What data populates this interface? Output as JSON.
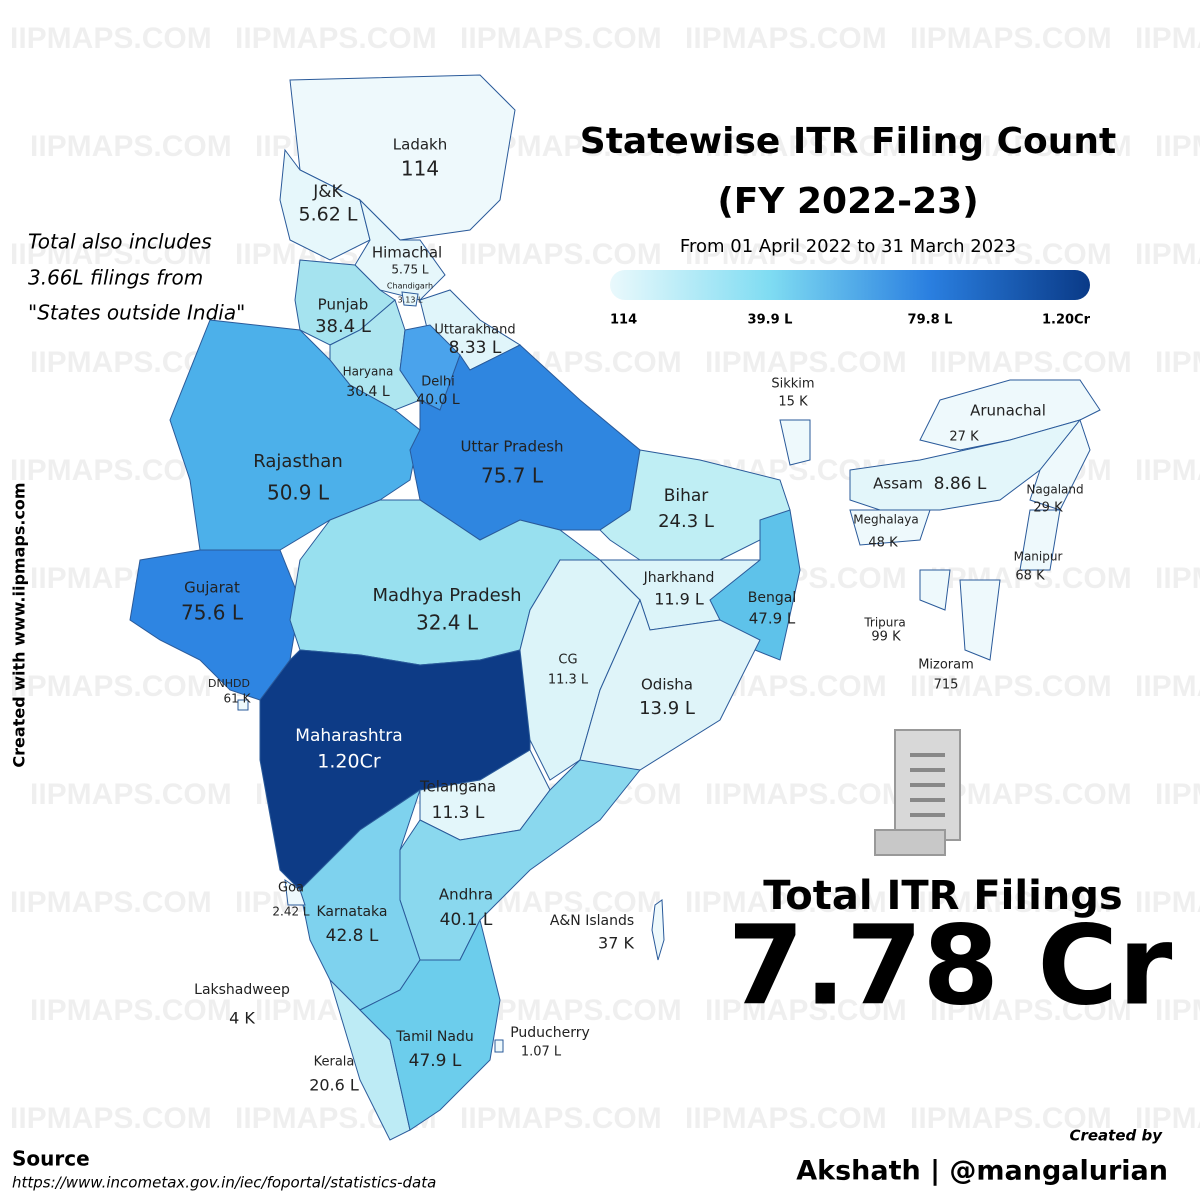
{
  "header": {
    "title": "Statewise ITR Filing Count",
    "title_line2": "(FY 2022-23)",
    "subtitle": "From 01 April 2022 to 31 March 2023"
  },
  "legend": {
    "colors": [
      "#eaf9fc",
      "#7fdcf2",
      "#2a7fe0",
      "#0a3a87"
    ],
    "ticks": [
      "114",
      "39.9 L",
      "79.8 L",
      "1.20Cr"
    ]
  },
  "note": {
    "lines": [
      "Total also includes",
      "3.66L filings from",
      "\"States outside India\""
    ]
  },
  "watermark": "IIPMAPS.COM",
  "side_text": "Created with www.iipmaps.com",
  "total": {
    "label": "Total ITR Filings",
    "value": "7.78 Cr"
  },
  "source": {
    "label": "Source",
    "url": "https://www.incometax.gov.in/iec/foportal/statistics-data"
  },
  "credit": {
    "label": "Created by",
    "author": "Akshath | @mangalurian"
  },
  "states": [
    {
      "name": "Ladakh",
      "value": "114",
      "color": "#eef9fc"
    },
    {
      "name": "J&K",
      "value": "5.62 L",
      "color": "#e6f7fb"
    },
    {
      "name": "Himachal",
      "value": "5.75 L",
      "color": "#e6f7fb"
    },
    {
      "name": "Chandigarh",
      "value": "3.13 L",
      "color": "#e6f7fb"
    },
    {
      "name": "Punjab",
      "value": "38.4 L",
      "color": "#a5e3ef"
    },
    {
      "name": "Uttarakhand",
      "value": "8.33 L",
      "color": "#e0f5fa"
    },
    {
      "name": "Haryana",
      "value": "30.4 L",
      "color": "#aee6f0"
    },
    {
      "name": "Delhi",
      "value": "40.0 L",
      "color": "#4aa3ec"
    },
    {
      "name": "Rajasthan",
      "value": "50.9 L",
      "color": "#4cb0ea"
    },
    {
      "name": "Uttar Pradesh",
      "value": "75.7 L",
      "color": "#2f86e0"
    },
    {
      "name": "Gujarat",
      "value": "75.6 L",
      "color": "#2e85e2"
    },
    {
      "name": "Madhya Pradesh",
      "value": "32.4 L",
      "color": "#98e0ef"
    },
    {
      "name": "Maharashtra",
      "value": "1.20Cr",
      "color": "#0d3b86"
    },
    {
      "name": "Bihar",
      "value": "24.3 L",
      "color": "#bfeef4"
    },
    {
      "name": "Jharkhand",
      "value": "11.9 L",
      "color": "#dcf4f9"
    },
    {
      "name": "Bengal",
      "value": "47.9 L",
      "color": "#5ec2ea"
    },
    {
      "name": "CG",
      "value": "11.3 L",
      "color": "#dcf4f9"
    },
    {
      "name": "Odisha",
      "value": "13.9 L",
      "color": "#dff4f9"
    },
    {
      "name": "Telangana",
      "value": "11.3 L",
      "color": "#e3f6fa"
    },
    {
      "name": "Andhra",
      "value": "40.1 L",
      "color": "#8ad8ee"
    },
    {
      "name": "Karnataka",
      "value": "42.8 L",
      "color": "#7ed2ee"
    },
    {
      "name": "Goa",
      "value": "2.42 L",
      "color": "#eef9fc"
    },
    {
      "name": "Kerala",
      "value": "20.6 L",
      "color": "#bdebf5"
    },
    {
      "name": "Tamil Nadu",
      "value": "47.9 L",
      "color": "#6ccdec"
    },
    {
      "name": "Puducherry",
      "value": "1.07 L",
      "color": "#eef9fc"
    },
    {
      "name": "Lakshadweep",
      "value": "4 K",
      "color": "#eef9fc"
    },
    {
      "name": "A&N Islands",
      "value": "37 K",
      "color": "#eef9fc"
    },
    {
      "name": "DNHDD",
      "value": "61 K",
      "color": "#eef9fc"
    },
    {
      "name": "Sikkim",
      "value": "15 K",
      "color": "#eef9fc"
    },
    {
      "name": "Arunachal",
      "value": "27 K",
      "color": "#eef9fc"
    },
    {
      "name": "Assam",
      "value": "8.86 L",
      "color": "#e3f6fa"
    },
    {
      "name": "Nagaland",
      "value": "29 K",
      "color": "#eef9fc"
    },
    {
      "name": "Meghalaya",
      "value": "48 K",
      "color": "#eef9fc"
    },
    {
      "name": "Manipur",
      "value": "68 K",
      "color": "#eef9fc"
    },
    {
      "name": "Tripura",
      "value": "99 K",
      "color": "#eef9fc"
    },
    {
      "name": "Mizoram",
      "value": "715",
      "color": "#eef9fc"
    }
  ]
}
